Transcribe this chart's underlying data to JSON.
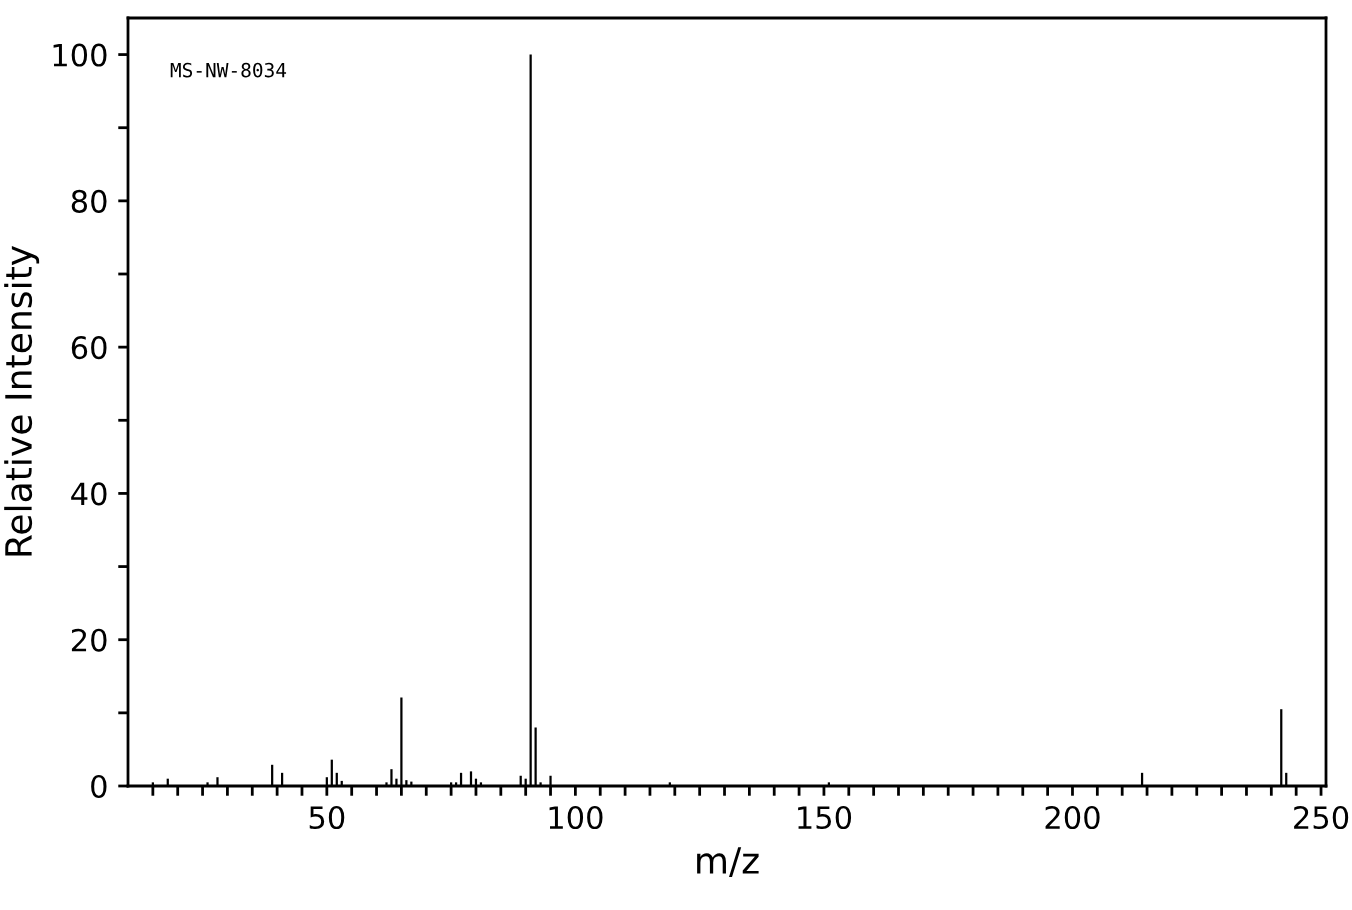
{
  "chart_data": {
    "type": "bar",
    "xlabel": "m/z",
    "ylabel": "Relative Intensity",
    "annotations": [
      "MS-NW-8034"
    ],
    "color": "#000000",
    "x": [
      15,
      18,
      26,
      28,
      39,
      41,
      50,
      51,
      52,
      53,
      62,
      63,
      64,
      65,
      66,
      67,
      75,
      76,
      77,
      79,
      80,
      81,
      89,
      90,
      91,
      92,
      93,
      95,
      119,
      151,
      214,
      242,
      243
    ],
    "values": [
      0.5,
      1.0,
      0.5,
      1.2,
      2.9,
      1.8,
      1.2,
      3.6,
      1.8,
      0.7,
      0.5,
      2.3,
      1.0,
      12.1,
      0.8,
      0.6,
      0.5,
      0.5,
      1.8,
      2.0,
      1.0,
      0.5,
      1.4,
      1.0,
      100,
      8.0,
      0.5,
      1.4,
      0.5,
      0.5,
      1.8,
      10.5,
      1.8
    ],
    "xlim": [
      10,
      251
    ],
    "ylim": [
      0,
      105
    ],
    "xticks": [
      {
        "value": 15,
        "label": null
      },
      {
        "value": 20,
        "label": null
      },
      {
        "value": 25,
        "label": null
      },
      {
        "value": 30,
        "label": null
      },
      {
        "value": 35,
        "label": null
      },
      {
        "value": 40,
        "label": null
      },
      {
        "value": 45,
        "label": null
      },
      50,
      {
        "value": 55,
        "label": null
      },
      {
        "value": 60,
        "label": null
      },
      {
        "value": 65,
        "label": null
      },
      {
        "value": 70,
        "label": null
      },
      {
        "value": 75,
        "label": null
      },
      {
        "value": 80,
        "label": null
      },
      {
        "value": 85,
        "label": null
      },
      {
        "value": 90,
        "label": null
      },
      {
        "value": 95,
        "label": null
      },
      100,
      {
        "value": 105,
        "label": null
      },
      {
        "value": 110,
        "label": null
      },
      {
        "value": 115,
        "label": null
      },
      {
        "value": 120,
        "label": null
      },
      {
        "value": 125,
        "label": null
      },
      {
        "value": 130,
        "label": null
      },
      {
        "value": 135,
        "label": null
      },
      {
        "value": 140,
        "label": null
      },
      {
        "value": 145,
        "label": null
      },
      150,
      {
        "value": 155,
        "label": null
      },
      {
        "value": 160,
        "label": null
      },
      {
        "value": 165,
        "label": null
      },
      {
        "value": 170,
        "label": null
      },
      {
        "value": 175,
        "label": null
      },
      {
        "value": 180,
        "label": null
      },
      {
        "value": 185,
        "label": null
      },
      {
        "value": 190,
        "label": null
      },
      {
        "value": 195,
        "label": null
      },
      200,
      {
        "value": 205,
        "label": null
      },
      {
        "value": 210,
        "label": null
      },
      {
        "value": 215,
        "label": null
      },
      {
        "value": 220,
        "label": null
      },
      {
        "value": 225,
        "label": null
      },
      {
        "value": 230,
        "label": null
      },
      {
        "value": 235,
        "label": null
      },
      {
        "value": 240,
        "label": null
      },
      {
        "value": 245,
        "label": null
      },
      250
    ],
    "yticks": [
      0,
      {
        "value": 10,
        "label": null
      },
      20,
      {
        "value": 30,
        "label": null
      },
      40,
      {
        "value": 50,
        "label": null
      },
      60,
      {
        "value": 70,
        "label": null
      },
      80,
      {
        "value": 90,
        "label": null
      },
      100
    ],
    "grid": false,
    "legend": false
  }
}
